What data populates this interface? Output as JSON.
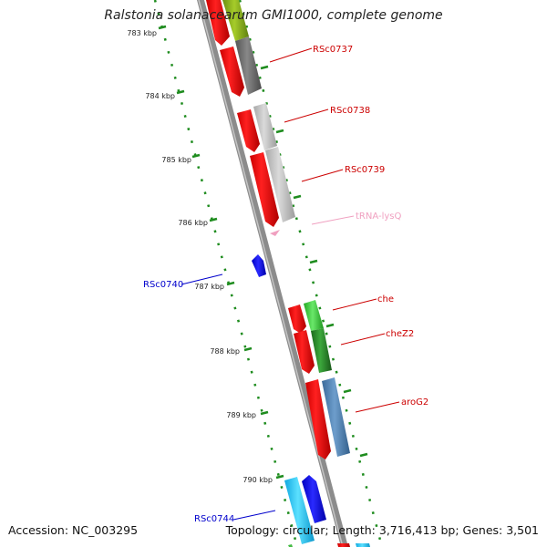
{
  "title": "Ralstonia solanacearum GMI1000, complete genome",
  "footer": {
    "accession": "Accession: NC_003295",
    "summary": "Topology: circular; Length: 3,716,413 bp; Genes: 3,501"
  },
  "ticks": [
    "783 kbp",
    "784 kbp",
    "785 kbp",
    "786 kbp",
    "787 kbp",
    "788 kbp",
    "789 kbp",
    "790 kbp"
  ],
  "gene_labels": [
    {
      "id": "RSc0737",
      "text": "RSc0737",
      "color": "#cc0000"
    },
    {
      "id": "RSc0738",
      "text": "RSc0738",
      "color": "#cc0000"
    },
    {
      "id": "RSc0739",
      "text": "RSc0739",
      "color": "#cc0000"
    },
    {
      "id": "tRNA-lysQ",
      "text": "tRNA-lysQ",
      "color": "#f0a0c0"
    },
    {
      "id": "RSc0740",
      "text": "RSc0740",
      "color": "#0000cc"
    },
    {
      "id": "che",
      "text": "che",
      "color": "#cc0000"
    },
    {
      "id": "cheZ2",
      "text": "cheZ2",
      "color": "#cc0000"
    },
    {
      "id": "aroG2",
      "text": "aroG2",
      "color": "#cc0000"
    },
    {
      "id": "RSc0744",
      "text": "RSc0744",
      "color": "#0000cc"
    }
  ]
}
